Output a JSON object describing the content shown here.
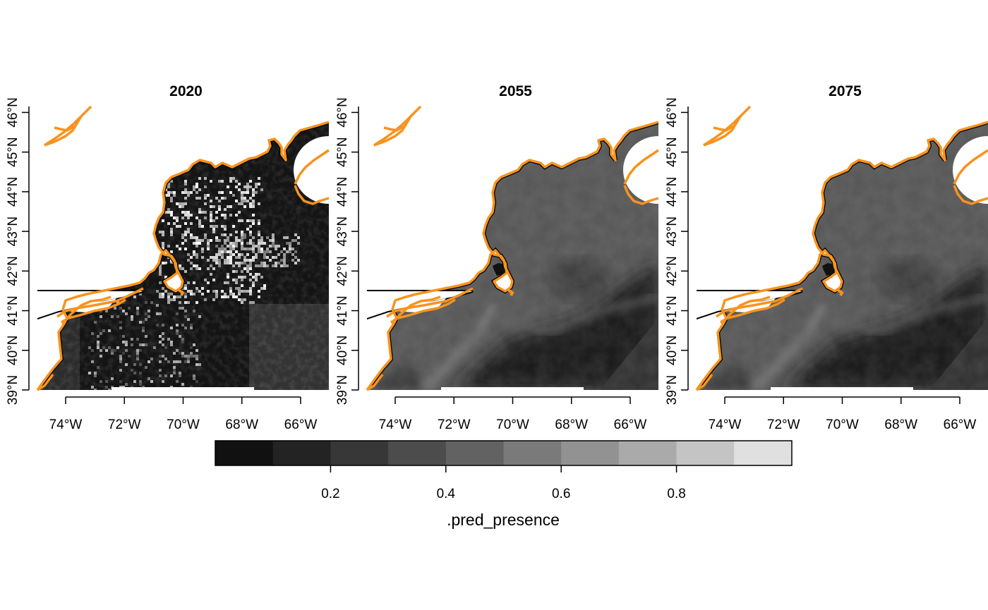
{
  "panels": [
    {
      "title": "2020",
      "pattern": "hotspot"
    },
    {
      "title": "2055",
      "pattern": "uniform"
    },
    {
      "title": "2075",
      "pattern": "uniform"
    }
  ],
  "axes": {
    "x_ticks": [
      "74°W",
      "72°W",
      "70°W",
      "68°W",
      "66°W"
    ],
    "y_ticks": [
      "39°N",
      "40°N",
      "41°N",
      "42°N",
      "43°N",
      "44°N",
      "45°N",
      "46°N"
    ]
  },
  "legend": {
    "title": ".pred_presence",
    "tick_labels": [
      "0.2",
      "0.4",
      "0.6",
      "0.8"
    ],
    "bins": [
      {
        "lower": 0.0,
        "upper": 0.1,
        "color": "#111111"
      },
      {
        "lower": 0.1,
        "upper": 0.2,
        "color": "#232323"
      },
      {
        "lower": 0.2,
        "upper": 0.3,
        "color": "#373737"
      },
      {
        "lower": 0.3,
        "upper": 0.4,
        "color": "#4c4c4c"
      },
      {
        "lower": 0.4,
        "upper": 0.5,
        "color": "#626262"
      },
      {
        "lower": 0.5,
        "upper": 0.6,
        "color": "#7a7a7a"
      },
      {
        "lower": 0.6,
        "upper": 0.7,
        "color": "#929292"
      },
      {
        "lower": 0.7,
        "upper": 0.8,
        "color": "#aaaaaa"
      },
      {
        "lower": 0.8,
        "upper": 0.9,
        "color": "#c4c4c4"
      },
      {
        "lower": 0.9,
        "upper": 1.0,
        "color": "#e0e0e0"
      }
    ]
  },
  "colors": {
    "coastline": "#f7931e",
    "background": "#ffffff"
  }
}
